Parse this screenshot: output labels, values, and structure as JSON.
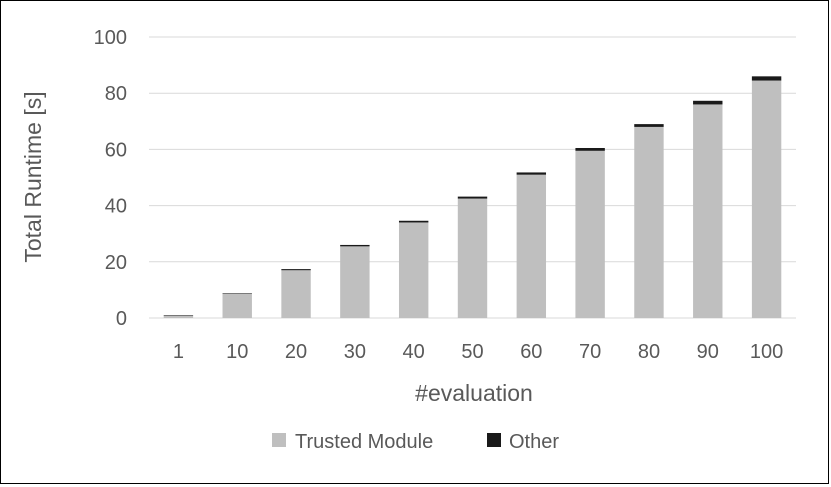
{
  "chart_data": {
    "type": "bar",
    "stacked": true,
    "categories": [
      "1",
      "10",
      "20",
      "30",
      "40",
      "50",
      "60",
      "70",
      "80",
      "90",
      "100"
    ],
    "series": [
      {
        "name": "Trusted Module",
        "color": "#bfbfbf",
        "values": [
          0.9,
          8.6,
          17.0,
          25.5,
          34.0,
          42.5,
          51.0,
          59.5,
          68.0,
          76.0,
          84.5
        ]
      },
      {
        "name": "Other",
        "color": "#1a1a1a",
        "values": [
          0.1,
          0.2,
          0.4,
          0.5,
          0.6,
          0.7,
          0.8,
          1.0,
          1.0,
          1.3,
          1.5
        ]
      }
    ],
    "title": "",
    "xlabel": "#evaluation",
    "ylabel": "Total Runtime [s]",
    "ylim": [
      0,
      100
    ],
    "yticks": [
      "0",
      "20",
      "40",
      "60",
      "80",
      "100"
    ],
    "grid": true,
    "legend": "bottom-center"
  }
}
